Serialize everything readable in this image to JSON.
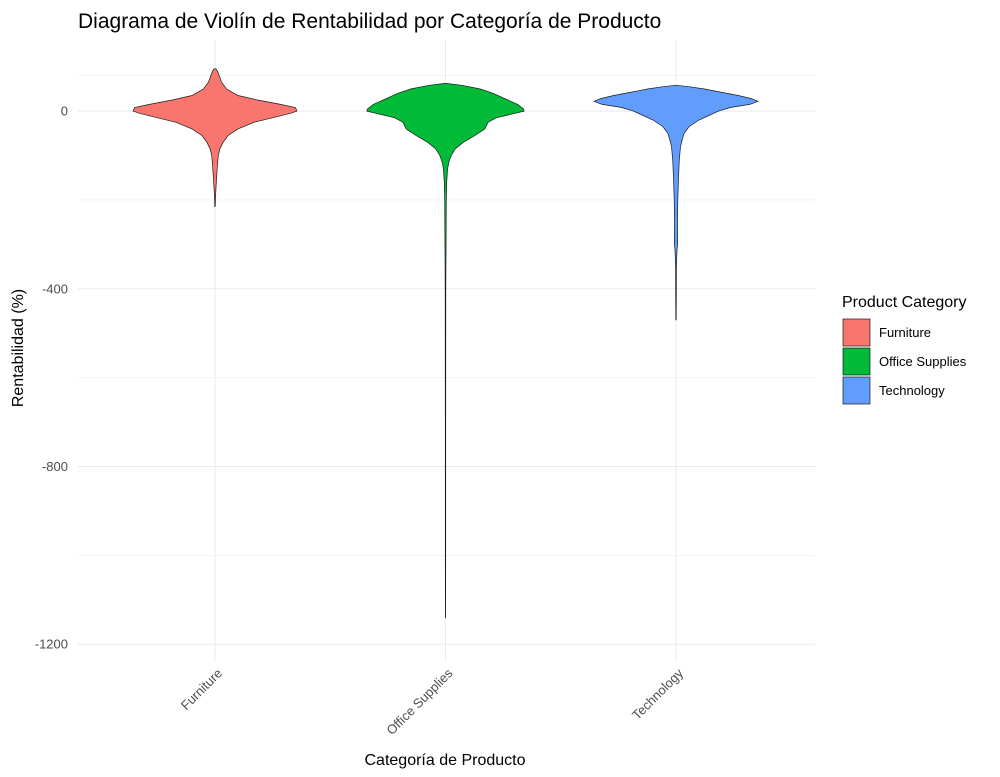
{
  "chart_data": {
    "type": "violin",
    "title": "Diagrama de Violín de Rentabilidad por Categoría de Producto",
    "xlabel": "Categoría de Producto",
    "ylabel": "Rentabilidad (%)",
    "ylim": [
      -1240,
      160
    ],
    "y_ticks": [
      0,
      -400,
      -800,
      -1200
    ],
    "y_tick_labels": [
      "0",
      "-400",
      "-800",
      "-1200"
    ],
    "grid": true,
    "legend": {
      "title": "Product Category",
      "position": "right",
      "entries": [
        "Furniture",
        "Office Supplies",
        "Technology"
      ]
    },
    "categories": [
      "Furniture",
      "Office Supplies",
      "Technology"
    ],
    "colors": [
      "#F8766D",
      "#00BA38",
      "#619CFF"
    ],
    "series": [
      {
        "category": "Furniture",
        "density": [
          [
            95,
            0.01
          ],
          [
            90,
            0.03
          ],
          [
            80,
            0.05
          ],
          [
            65,
            0.08
          ],
          [
            50,
            0.14
          ],
          [
            35,
            0.28
          ],
          [
            25,
            0.52
          ],
          [
            15,
            0.8
          ],
          [
            8,
            0.98
          ],
          [
            0,
            1.0
          ],
          [
            -5,
            0.92
          ],
          [
            -15,
            0.7
          ],
          [
            -25,
            0.48
          ],
          [
            -40,
            0.28
          ],
          [
            -55,
            0.16
          ],
          [
            -70,
            0.1
          ],
          [
            -85,
            0.06
          ],
          [
            -100,
            0.04
          ],
          [
            -120,
            0.03
          ],
          [
            -150,
            0.02
          ],
          [
            -180,
            0.01
          ],
          [
            -215,
            0.003
          ]
        ]
      },
      {
        "category": "Office Supplies",
        "density": [
          [
            62,
            0.02
          ],
          [
            58,
            0.2
          ],
          [
            50,
            0.42
          ],
          [
            40,
            0.58
          ],
          [
            25,
            0.76
          ],
          [
            15,
            0.88
          ],
          [
            5,
            0.95
          ],
          [
            0,
            0.96
          ],
          [
            -5,
            0.85
          ],
          [
            -15,
            0.62
          ],
          [
            -25,
            0.52
          ],
          [
            -40,
            0.48
          ],
          [
            -55,
            0.36
          ],
          [
            -70,
            0.22
          ],
          [
            -85,
            0.12
          ],
          [
            -100,
            0.07
          ],
          [
            -115,
            0.04
          ],
          [
            -130,
            0.025
          ],
          [
            -160,
            0.015
          ],
          [
            -200,
            0.01
          ],
          [
            -240,
            0.008
          ],
          [
            -400,
            0.004
          ],
          [
            -700,
            0.003
          ],
          [
            -1000,
            0.002
          ],
          [
            -1140,
            0.001
          ]
        ]
      },
      {
        "category": "Technology",
        "density": [
          [
            58,
            0.01
          ],
          [
            55,
            0.16
          ],
          [
            50,
            0.34
          ],
          [
            42,
            0.56
          ],
          [
            35,
            0.76
          ],
          [
            28,
            0.92
          ],
          [
            22,
            1.0
          ],
          [
            15,
            0.9
          ],
          [
            8,
            0.66
          ],
          [
            0,
            0.52
          ],
          [
            -10,
            0.4
          ],
          [
            -20,
            0.28
          ],
          [
            -35,
            0.16
          ],
          [
            -50,
            0.1
          ],
          [
            -65,
            0.075
          ],
          [
            -80,
            0.055
          ],
          [
            -110,
            0.04
          ],
          [
            -150,
            0.03
          ],
          [
            -200,
            0.022
          ],
          [
            -250,
            0.018
          ],
          [
            -300,
            0.02
          ],
          [
            -310,
            0.014
          ],
          [
            -330,
            0.008
          ],
          [
            -360,
            0.005
          ],
          [
            -420,
            0.004
          ],
          [
            -470,
            0.002
          ]
        ]
      }
    ]
  }
}
